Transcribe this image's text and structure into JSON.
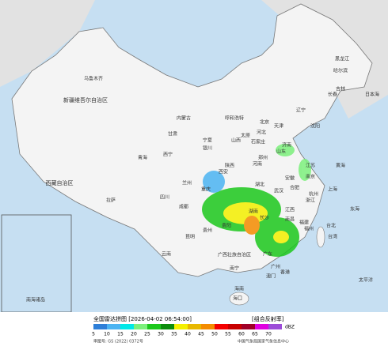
{
  "map": {
    "labels": [
      "新疆维吾尔自治区",
      "乌鲁木齐",
      "西藏自治区",
      "拉萨",
      "青海",
      "西宁",
      "甘肃",
      "兰州",
      "内蒙古",
      "呼和浩特",
      "宁夏",
      "银川",
      "四川",
      "成都",
      "重庆",
      "云南",
      "昆明",
      "贵州",
      "贵阳",
      "广西壮族自治区",
      "南宁",
      "广东",
      "广州",
      "湖南",
      "长沙",
      "湖北",
      "武汉",
      "江西",
      "南昌",
      "福建",
      "福州",
      "浙江",
      "杭州",
      "上海",
      "江苏",
      "南京",
      "安徽",
      "合肥",
      "山东",
      "济南",
      "河南",
      "郑州",
      "陕西",
      "西安",
      "山西",
      "太原",
      "河北",
      "石家庄",
      "北京",
      "天津",
      "辽宁",
      "沈阳",
      "吉林",
      "长春",
      "黑龙江",
      "哈尔滨",
      "台湾",
      "台北",
      "海南",
      "海口",
      "香港",
      "澳门",
      "日本海",
      "黄海",
      "东海",
      "太平洋",
      "南海诸岛"
    ]
  },
  "legend": {
    "title": "全国雷达拼图 [2026-04-02 06:54:00]",
    "product": "[组合反射率]",
    "unit": "dBZ",
    "items": [
      {
        "value": 5,
        "color": "#2e7fd8"
      },
      {
        "value": 10,
        "color": "#4cb4f2"
      },
      {
        "value": 15,
        "color": "#00e8e8"
      },
      {
        "value": 20,
        "color": "#7cf07c"
      },
      {
        "value": 25,
        "color": "#1cc81c"
      },
      {
        "value": 30,
        "color": "#0c8c0c"
      },
      {
        "value": 35,
        "color": "#f4f000"
      },
      {
        "value": 40,
        "color": "#e8b800"
      },
      {
        "value": 45,
        "color": "#f48c00"
      },
      {
        "value": 50,
        "color": "#f40000"
      },
      {
        "value": 55,
        "color": "#c80000"
      },
      {
        "value": 60,
        "color": "#a00028"
      },
      {
        "value": 65,
        "color": "#e000e0"
      },
      {
        "value": 70,
        "color": "#9c4cd8"
      }
    ],
    "approval": "审图号: GS (2022) 0372号",
    "source": "中国气象局国家气象信息中心"
  }
}
